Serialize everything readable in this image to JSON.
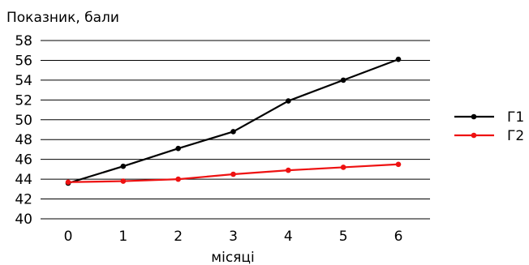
{
  "chart_data": {
    "type": "line",
    "ylabel": "Показник, бали",
    "xlabel": "місяці",
    "categories": [
      "0",
      "1",
      "2",
      "3",
      "4",
      "5",
      "6"
    ],
    "ylim": [
      40,
      58
    ],
    "yticks": [
      40,
      42,
      44,
      46,
      48,
      50,
      52,
      54,
      56,
      58
    ],
    "grid": "horizontal",
    "legend_position": "right",
    "series": [
      {
        "name": "Г1",
        "color": "#000000",
        "values": [
          43.6,
          45.3,
          47.1,
          48.8,
          51.9,
          54.0,
          56.1
        ]
      },
      {
        "name": "Г2",
        "color": "#ee1111",
        "values": [
          43.7,
          43.8,
          44.0,
          44.5,
          44.9,
          45.2,
          45.5
        ]
      }
    ]
  }
}
